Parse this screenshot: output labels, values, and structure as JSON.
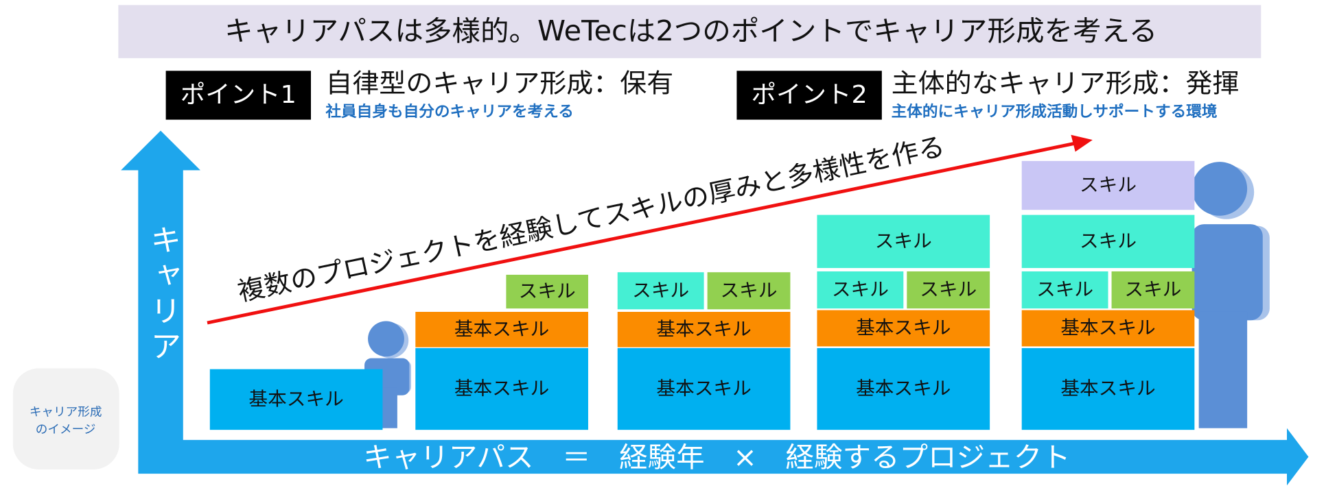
{
  "title": "キャリアパスは多様的。WeTecは2つのポイントでキャリア形成を考える",
  "points": [
    {
      "badge": "ポイント1",
      "heading": "自律型のキャリア形成：保有",
      "sub": "社員自身も自分のキャリアを考える"
    },
    {
      "badge": "ポイント2",
      "heading": "主体的なキャリア形成：発揮",
      "sub": "主体的にキャリア形成活動しサポートする環境"
    }
  ],
  "arrow_text": "複数のプロジェクトを経験してスキルの厚みと多様性を作る",
  "y_axis": "キャリア",
  "x_axis": "キャリアパス　＝　経験年　×　経験するプロジェクト",
  "side_label": [
    "キャリア形成",
    "のイメージ"
  ],
  "blocks": [
    "基本スキル",
    "基本スキル",
    "基本スキル",
    "スキル",
    "基本スキル",
    "基本スキル",
    "スキル",
    "スキル",
    "基本スキル",
    "基本スキル",
    "スキル",
    "スキル",
    "スキル",
    "基本スキル",
    "基本スキル",
    "スキル",
    "スキル",
    "スキル",
    "スキル"
  ]
}
